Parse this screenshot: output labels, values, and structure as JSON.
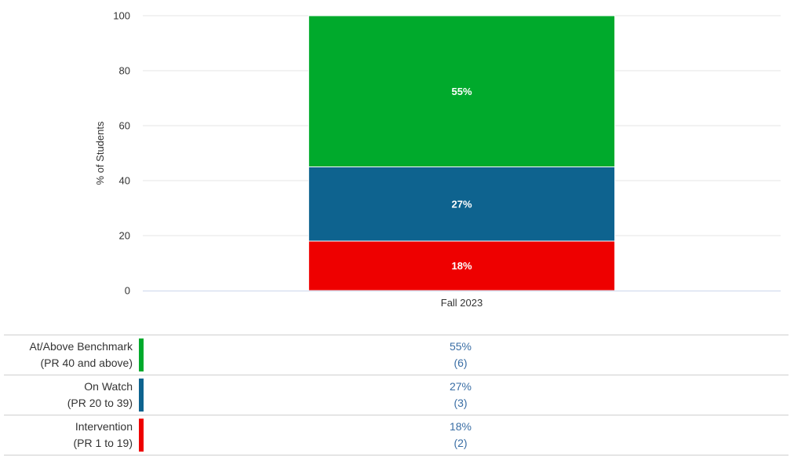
{
  "chart_data": {
    "type": "bar",
    "stacked": true,
    "categories": [
      "Fall 2023"
    ],
    "ylabel": "% of Students",
    "xlabel": "",
    "ylim": [
      0,
      100
    ],
    "yticks": [
      0,
      20,
      40,
      60,
      80,
      100
    ],
    "grid": true,
    "series": [
      {
        "name": "Intervention",
        "values": [
          18
        ],
        "color": "#ee0000",
        "label": "18%"
      },
      {
        "name": "On Watch",
        "values": [
          27
        ],
        "color": "#0e638f",
        "label": "27%"
      },
      {
        "name": "At/Above Benchmark",
        "values": [
          55
        ],
        "color": "#00aa2c",
        "label": "55%"
      }
    ]
  },
  "legend_table": [
    {
      "name": "At/Above Benchmark",
      "range": "(PR 40 and above)",
      "color": "#00aa2c",
      "percent": "55%",
      "count": "(6)"
    },
    {
      "name": "On Watch",
      "range": "(PR 20 to 39)",
      "color": "#0e638f",
      "percent": "27%",
      "count": "(3)"
    },
    {
      "name": "Intervention",
      "range": "(PR 1 to 19)",
      "color": "#ee0000",
      "percent": "18%",
      "count": "(2)"
    }
  ]
}
